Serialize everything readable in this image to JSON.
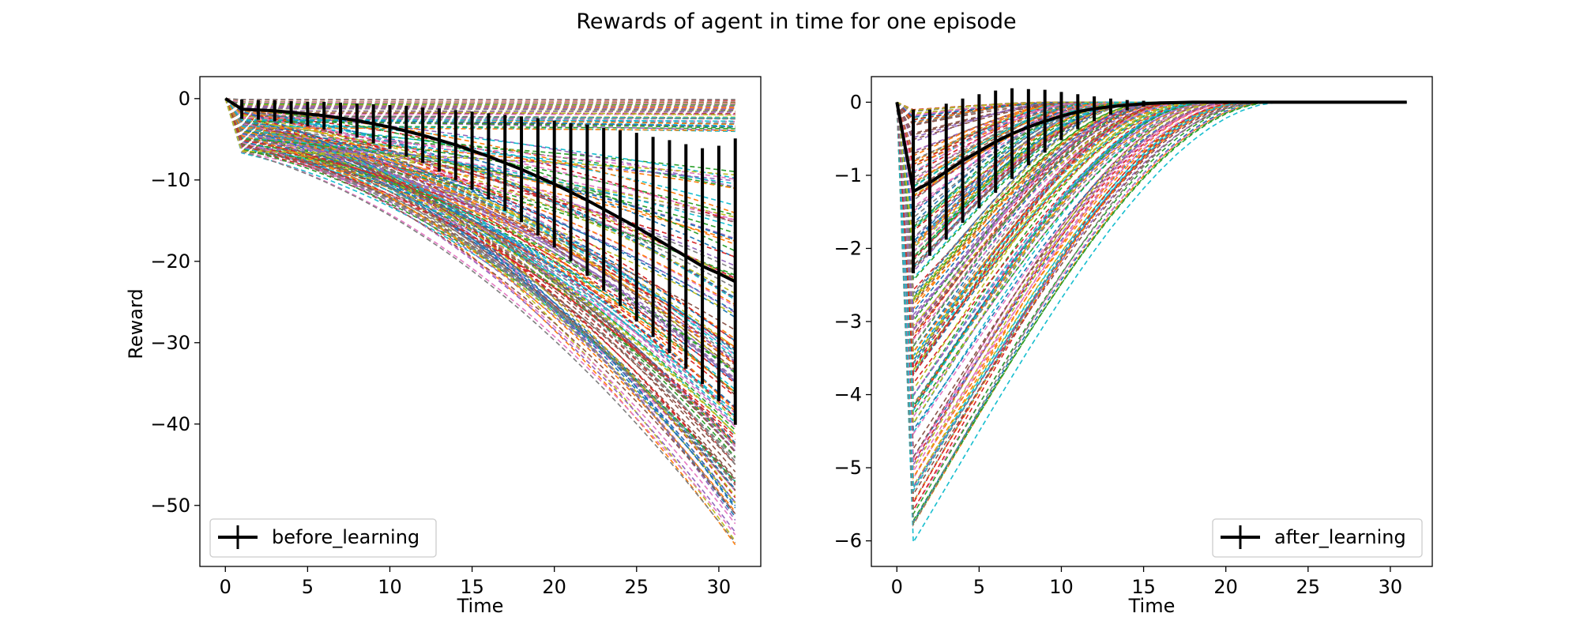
{
  "figure": {
    "title": "Rewards of agent in time for one episode"
  },
  "chart_data": [
    {
      "type": "line",
      "panel": "left",
      "xlabel": "Time",
      "ylabel": "Reward",
      "xlim": [
        -1.55,
        32.55
      ],
      "ylim": [
        -57.5,
        2.7
      ],
      "xticks": [
        0,
        5,
        10,
        15,
        20,
        25,
        30
      ],
      "yticks": [
        0,
        -10,
        -20,
        -30,
        -40,
        -50
      ],
      "grid": false,
      "legend": {
        "label": "before_learning",
        "position": "lower-left"
      },
      "background_series": {
        "style": "dashed",
        "count": 200,
        "description_of_shape": "each trajectory starts at 0 at t=0, drops to a small initial penalty at t=1 and then declines quadratically; the deepest reaches about -55 at t=31, many stay flat between 0 and -4",
        "final_value_range": [
          -55,
          0
        ]
      },
      "mean_series": {
        "name": "before_learning",
        "x": [
          0,
          1,
          2,
          3,
          4,
          5,
          6,
          7,
          8,
          9,
          10,
          11,
          12,
          13,
          14,
          15,
          16,
          17,
          18,
          19,
          20,
          21,
          22,
          23,
          24,
          25,
          26,
          27,
          28,
          29,
          30,
          31
        ],
        "y": [
          0,
          -1.3,
          -1.4,
          -1.5,
          -1.7,
          -1.9,
          -2.1,
          -2.4,
          -2.7,
          -3.1,
          -3.5,
          -4.0,
          -4.5,
          -5.1,
          -5.7,
          -6.4,
          -7.1,
          -7.9,
          -8.7,
          -9.6,
          -10.5,
          -11.5,
          -12.5,
          -13.6,
          -14.7,
          -15.8,
          -17.0,
          -18.2,
          -19.4,
          -20.6,
          -21.5,
          -22.5
        ],
        "yerr": [
          0,
          1.2,
          1.2,
          1.3,
          1.4,
          1.5,
          1.7,
          1.9,
          2.1,
          2.4,
          2.7,
          3.1,
          3.4,
          3.9,
          4.3,
          4.8,
          5.3,
          5.9,
          6.5,
          7.2,
          7.8,
          8.5,
          9.3,
          10.0,
          10.8,
          11.6,
          12.3,
          13.1,
          13.8,
          14.5,
          15.7,
          17.6
        ]
      }
    },
    {
      "type": "line",
      "panel": "right",
      "xlabel": "Time",
      "ylabel": "",
      "xlim": [
        -1.55,
        32.55
      ],
      "ylim": [
        -6.35,
        0.35
      ],
      "xticks": [
        0,
        5,
        10,
        15,
        20,
        25,
        30
      ],
      "yticks": [
        0,
        -1,
        -2,
        -3,
        -4,
        -5,
        -6
      ],
      "grid": false,
      "legend": {
        "label": "after_learning",
        "position": "lower-right"
      },
      "background_series": {
        "style": "dashed",
        "count": 200,
        "description_of_shape": "each trajectory starts at 0 at t=0, drops sharply to its minimum at t=1 (between about -0.1 and -6.05), then recovers back to 0 by roughly t=22",
        "min_value_range": [
          -6.05,
          -0.1
        ]
      },
      "mean_series": {
        "name": "after_learning",
        "x": [
          0,
          1,
          2,
          3,
          4,
          5,
          6,
          7,
          8,
          9,
          10,
          11,
          12,
          13,
          14,
          15,
          16,
          17,
          18,
          19,
          20,
          21,
          22,
          23,
          24,
          25,
          26,
          27,
          28,
          29,
          30,
          31
        ],
        "y": [
          0,
          -1.22,
          -1.1,
          -0.95,
          -0.8,
          -0.67,
          -0.54,
          -0.43,
          -0.34,
          -0.26,
          -0.19,
          -0.13,
          -0.09,
          -0.06,
          -0.04,
          -0.02,
          -0.01,
          -0.005,
          0,
          0,
          0,
          0,
          0,
          0,
          0,
          0,
          0,
          0,
          0,
          0,
          0,
          0
        ],
        "yerr": [
          0,
          1.12,
          1.0,
          0.93,
          0.85,
          0.78,
          0.7,
          0.62,
          0.52,
          0.43,
          0.33,
          0.24,
          0.17,
          0.11,
          0.07,
          0.04,
          0.02,
          0.01,
          0,
          0,
          0,
          0,
          0,
          0,
          0,
          0,
          0,
          0,
          0,
          0,
          0,
          0
        ]
      }
    }
  ],
  "colors": {
    "mean_line": "#000000",
    "palette": [
      "#1f77b4",
      "#ff7f0e",
      "#2ca02c",
      "#d62728",
      "#9467bd",
      "#8c564b",
      "#e377c2",
      "#7f7f7f",
      "#bcbd22",
      "#17becf"
    ]
  }
}
